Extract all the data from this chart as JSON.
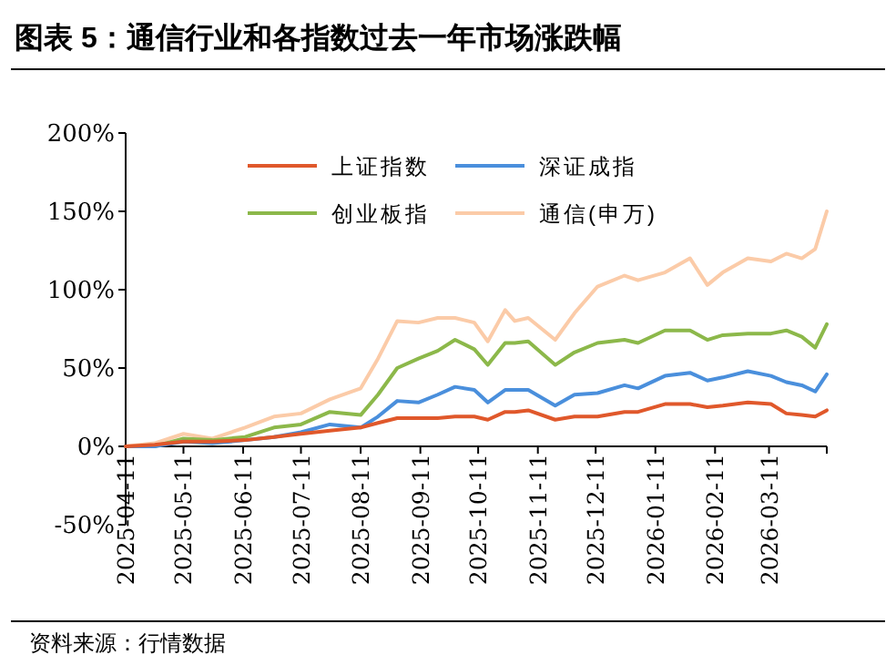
{
  "chart_data": {
    "type": "line",
    "title": "图表 5：通信行业和各指数过去一年市场涨跌幅",
    "annotations": [
      "资料来源：行情数据"
    ],
    "x": [
      "2025-04-11",
      "2025-04-26",
      "2025-05-11",
      "2025-05-26",
      "2025-06-12",
      "2025-06-27",
      "2025-07-11",
      "2025-07-26",
      "2025-08-11",
      "2025-08-20",
      "2025-08-30",
      "2025-09-10",
      "2025-09-20",
      "2025-09-29",
      "2025-10-09",
      "2025-10-16",
      "2025-10-25",
      "2025-10-30",
      "2025-11-06",
      "2025-11-20",
      "2025-11-30",
      "2025-12-12",
      "2025-12-26",
      "2026-01-02",
      "2026-01-16",
      "2026-01-29",
      "2026-02-07",
      "2026-02-15",
      "2026-02-28",
      "2026-03-12",
      "2026-03-20",
      "2026-03-28",
      "2026-04-04",
      "2026-04-10"
    ],
    "series": [
      {
        "name": "上证指数",
        "color": "#e0582b",
        "values": [
          0,
          1,
          3,
          3,
          4,
          6,
          8,
          10,
          12,
          15,
          18,
          18,
          18,
          19,
          19,
          17,
          22,
          22,
          23,
          17,
          19,
          19,
          22,
          22,
          27,
          27,
          25,
          26,
          28,
          27,
          21,
          20,
          19,
          23
        ]
      },
      {
        "name": "深证成指",
        "color": "#4a8fdc",
        "values": [
          0,
          0,
          3,
          2,
          4,
          6,
          9,
          14,
          12,
          19,
          29,
          28,
          33,
          38,
          36,
          28,
          36,
          36,
          36,
          26,
          33,
          34,
          39,
          37,
          45,
          47,
          42,
          44,
          48,
          45,
          41,
          39,
          35,
          46
        ]
      },
      {
        "name": "创业板指",
        "color": "#8cb84a",
        "values": [
          0,
          0,
          5,
          4,
          6,
          12,
          14,
          22,
          20,
          33,
          50,
          56,
          61,
          68,
          62,
          52,
          66,
          66,
          67,
          52,
          60,
          66,
          68,
          66,
          74,
          74,
          68,
          71,
          72,
          72,
          74,
          70,
          63,
          78
        ]
      },
      {
        "name": "通信(申万)",
        "color": "#fbcba8",
        "values": [
          0,
          2,
          8,
          5,
          12,
          19,
          21,
          30,
          37,
          56,
          80,
          79,
          82,
          82,
          79,
          67,
          87,
          80,
          82,
          68,
          85,
          102,
          109,
          106,
          111,
          120,
          103,
          111,
          120,
          118,
          123,
          120,
          126,
          150
        ]
      }
    ],
    "xlim": [
      "2025-04-11",
      "2026-04-10"
    ],
    "xticks": [
      "2025-04-11",
      "2025-05-11",
      "2025-06-11",
      "2025-07-11",
      "2025-08-11",
      "2025-09-11",
      "2025-10-11",
      "2025-11-11",
      "2025-12-11",
      "2026-01-11",
      "2026-02-11",
      "2026-03-11",
      {
        "value": "2026-04-10",
        "label": null
      }
    ],
    "ylim": [
      -50,
      200
    ],
    "yticks": [
      {
        "value": -50,
        "label": "-50%"
      },
      {
        "value": 0,
        "label": "0%"
      },
      {
        "value": 50,
        "label": "50%"
      },
      {
        "value": 100,
        "label": "100%"
      },
      {
        "value": 150,
        "label": "150%"
      },
      {
        "value": 200,
        "label": "200%"
      }
    ],
    "legend": "top",
    "grid": false,
    "marker": "none",
    "line_style": "solid"
  }
}
